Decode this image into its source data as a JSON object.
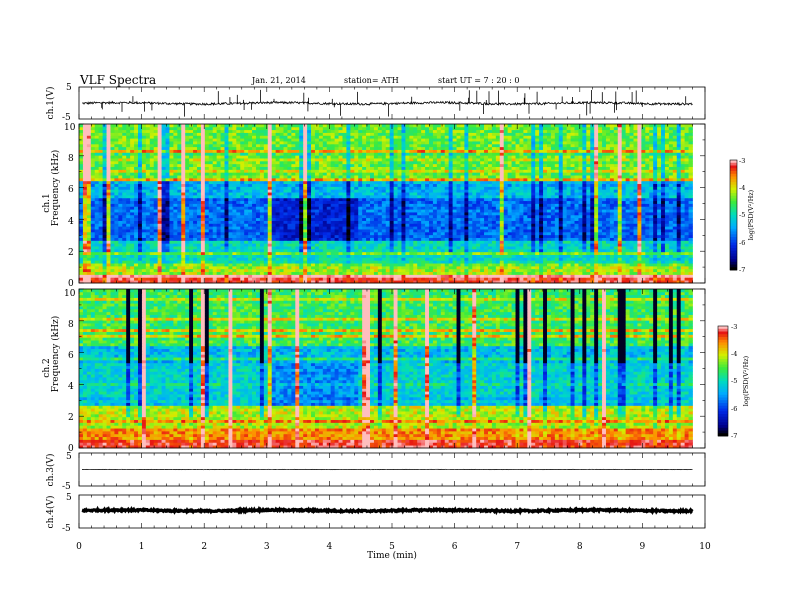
{
  "header": {
    "title": "VLF  Spectra",
    "date": "Jan.  21,  2014",
    "station": "station= ATH",
    "start": "start  UT  =    7  : 20 : 0"
  },
  "chart_data": {
    "type": "heatmap",
    "x_label": "Time  (min)",
    "x_range": [
      0,
      10
    ],
    "x_ticks": [
      "0",
      "1",
      "2",
      "3",
      "4",
      "5",
      "6",
      "7",
      "8",
      "9",
      "10"
    ],
    "data_end_min": 9.8,
    "panels": [
      {
        "id": "ch1v",
        "type": "line",
        "ylabel": "ch.1(V)",
        "y_ticks": [
          "5",
          "-5"
        ],
        "ylim": [
          -5,
          5
        ],
        "baseline": -0.1,
        "amplitude": 0.35,
        "spikes": true
      },
      {
        "id": "spec1",
        "type": "heatmap",
        "ylabel_top": "ch.1",
        "ylabel": "Frequency  (kHz)",
        "y_ticks": [
          "0",
          "2",
          "4",
          "6",
          "8",
          "10"
        ],
        "ylim": [
          0,
          10
        ],
        "colorbar": {
          "label": "log(PSD(V²/Hz)",
          "ticks": [
            "-3",
            "-4",
            "-5",
            "-6",
            "-7"
          ],
          "range": [
            -7,
            -3
          ]
        }
      },
      {
        "id": "spec2",
        "type": "heatmap",
        "ylabel_top": "ch.2",
        "ylabel": "Frequency  (kHz)",
        "y_ticks": [
          "0",
          "2",
          "4",
          "6",
          "8",
          "10"
        ],
        "ylim": [
          0,
          10
        ],
        "colorbar": {
          "label": "log(PSD(V²/Hz)",
          "ticks": [
            "-3",
            "-4",
            "-5",
            "-6",
            "-7"
          ],
          "range": [
            -7,
            -3
          ]
        }
      },
      {
        "id": "ch3v",
        "type": "line",
        "ylabel": "ch.3(V)",
        "y_ticks": [
          "5",
          "-5"
        ],
        "ylim": [
          -5,
          5
        ],
        "baseline": 0.0,
        "amplitude": 0.05,
        "spikes": false
      },
      {
        "id": "ch4v",
        "type": "line",
        "ylabel": "ch.4(V)",
        "y_ticks": [
          "5",
          "-5"
        ],
        "ylim": [
          -5,
          5
        ],
        "baseline": 0.3,
        "amplitude": 0.25,
        "spikes": false,
        "thick": true
      }
    ]
  }
}
